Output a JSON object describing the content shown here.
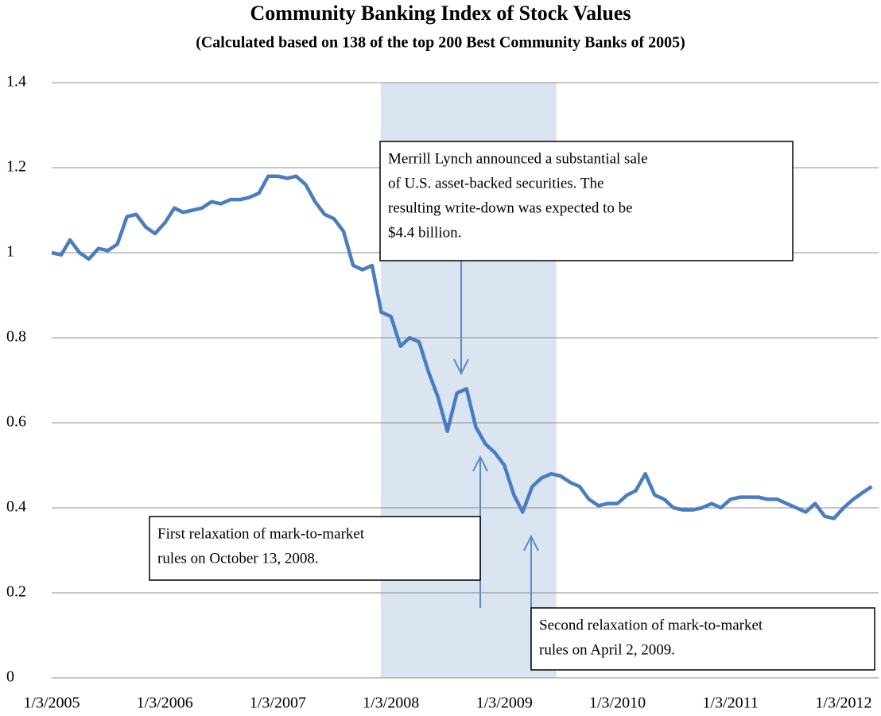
{
  "chart_data": {
    "type": "line",
    "title": "Community Banking Index of Stock Values",
    "subtitle": "(Calculated based on 138 of the top 200 Best Community Banks of 2005)",
    "x": [
      "2005-01-03",
      "2005-02-03",
      "2005-03-03",
      "2005-04-03",
      "2005-05-03",
      "2005-06-03",
      "2005-07-03",
      "2005-08-03",
      "2005-09-03",
      "2005-10-03",
      "2005-11-03",
      "2005-12-03",
      "2006-01-03",
      "2006-02-03",
      "2006-03-03",
      "2006-04-03",
      "2006-05-03",
      "2006-06-03",
      "2006-07-03",
      "2006-08-03",
      "2006-09-03",
      "2006-10-03",
      "2006-11-03",
      "2006-12-03",
      "2007-01-03",
      "2007-02-03",
      "2007-03-03",
      "2007-04-03",
      "2007-05-03",
      "2007-06-03",
      "2007-07-03",
      "2007-08-03",
      "2007-09-03",
      "2007-10-03",
      "2007-11-03",
      "2007-12-03",
      "2008-01-03",
      "2008-02-03",
      "2008-03-03",
      "2008-04-03",
      "2008-05-03",
      "2008-06-03",
      "2008-07-03",
      "2008-08-03",
      "2008-09-03",
      "2008-10-03",
      "2008-11-03",
      "2008-12-03",
      "2009-01-03",
      "2009-02-03",
      "2009-03-03",
      "2009-04-03",
      "2009-05-03",
      "2009-06-03",
      "2009-07-03",
      "2009-08-03",
      "2009-09-03",
      "2009-10-03",
      "2009-11-03",
      "2009-12-03",
      "2010-01-03",
      "2010-02-03",
      "2010-03-03",
      "2010-04-03",
      "2010-05-03",
      "2010-06-03",
      "2010-07-03",
      "2010-08-03",
      "2010-09-03",
      "2010-10-03",
      "2010-11-03",
      "2010-12-03",
      "2011-01-03",
      "2011-02-03",
      "2011-03-03",
      "2011-04-03",
      "2011-05-03",
      "2011-06-03",
      "2011-07-03",
      "2011-08-03",
      "2011-09-03",
      "2011-10-03",
      "2011-11-03",
      "2011-12-03",
      "2012-01-03",
      "2012-02-03",
      "2012-03-03",
      "2012-04-03"
    ],
    "series": [
      {
        "color": "#4a7dbf",
        "values": [
          1.0,
          0.995,
          1.03,
          1.0,
          0.985,
          1.01,
          1.005,
          1.02,
          1.085,
          1.09,
          1.06,
          1.045,
          1.07,
          1.105,
          1.095,
          1.1,
          1.105,
          1.12,
          1.115,
          1.125,
          1.125,
          1.13,
          1.14,
          1.18,
          1.18,
          1.175,
          1.18,
          1.16,
          1.12,
          1.09,
          1.08,
          1.05,
          0.97,
          0.96,
          0.97,
          0.86,
          0.85,
          0.78,
          0.8,
          0.79,
          0.72,
          0.66,
          0.58,
          0.67,
          0.68,
          0.59,
          0.55,
          0.53,
          0.5,
          0.43,
          0.39,
          0.45,
          0.47,
          0.48,
          0.475,
          0.46,
          0.45,
          0.42,
          0.405,
          0.41,
          0.41,
          0.43,
          0.44,
          0.48,
          0.43,
          0.42,
          0.4,
          0.395,
          0.395,
          0.4,
          0.41,
          0.4,
          0.42,
          0.425,
          0.425,
          0.425,
          0.42,
          0.42,
          0.41,
          0.4,
          0.39,
          0.41,
          0.38,
          0.375,
          0.4,
          0.42,
          0.435,
          0.45
        ]
      }
    ],
    "xlim": [
      "2005-01-03",
      "2012-04-25"
    ],
    "xticks": [
      {
        "value": "2005-01-03",
        "label": "1/3/2005"
      },
      {
        "value": "2006-01-03",
        "label": "1/3/2006"
      },
      {
        "value": "2007-01-03",
        "label": "1/3/2007"
      },
      {
        "value": "2008-01-03",
        "label": "1/3/2008"
      },
      {
        "value": "2009-01-03",
        "label": "1/3/2009"
      },
      {
        "value": "2010-01-03",
        "label": "1/3/2010"
      },
      {
        "value": "2011-01-03",
        "label": "1/3/2011"
      },
      {
        "value": "2012-01-03",
        "label": "1/3/2012"
      }
    ],
    "ylim": [
      0,
      1.4
    ],
    "yticks": [
      0,
      0.2,
      0.4,
      0.6,
      0.8,
      1,
      1.2,
      1.4
    ],
    "grid": true,
    "shaded_span": {
      "start": "2007-12-01",
      "end": "2009-06-20",
      "color": "#dbe4f1"
    },
    "annotations": [
      {
        "lines": [
          "Merrill Lynch announced a substantial sale",
          "of U.S. asset-backed securities.  The",
          "resulting write-down was expected to be",
          "$4.4 billion."
        ]
      },
      {
        "lines": [
          "First relaxation of mark-to-market",
          "rules on October 13, 2008."
        ]
      },
      {
        "lines": [
          "Second relaxation of mark-to-market",
          "rules on April 2, 2009."
        ]
      }
    ]
  }
}
